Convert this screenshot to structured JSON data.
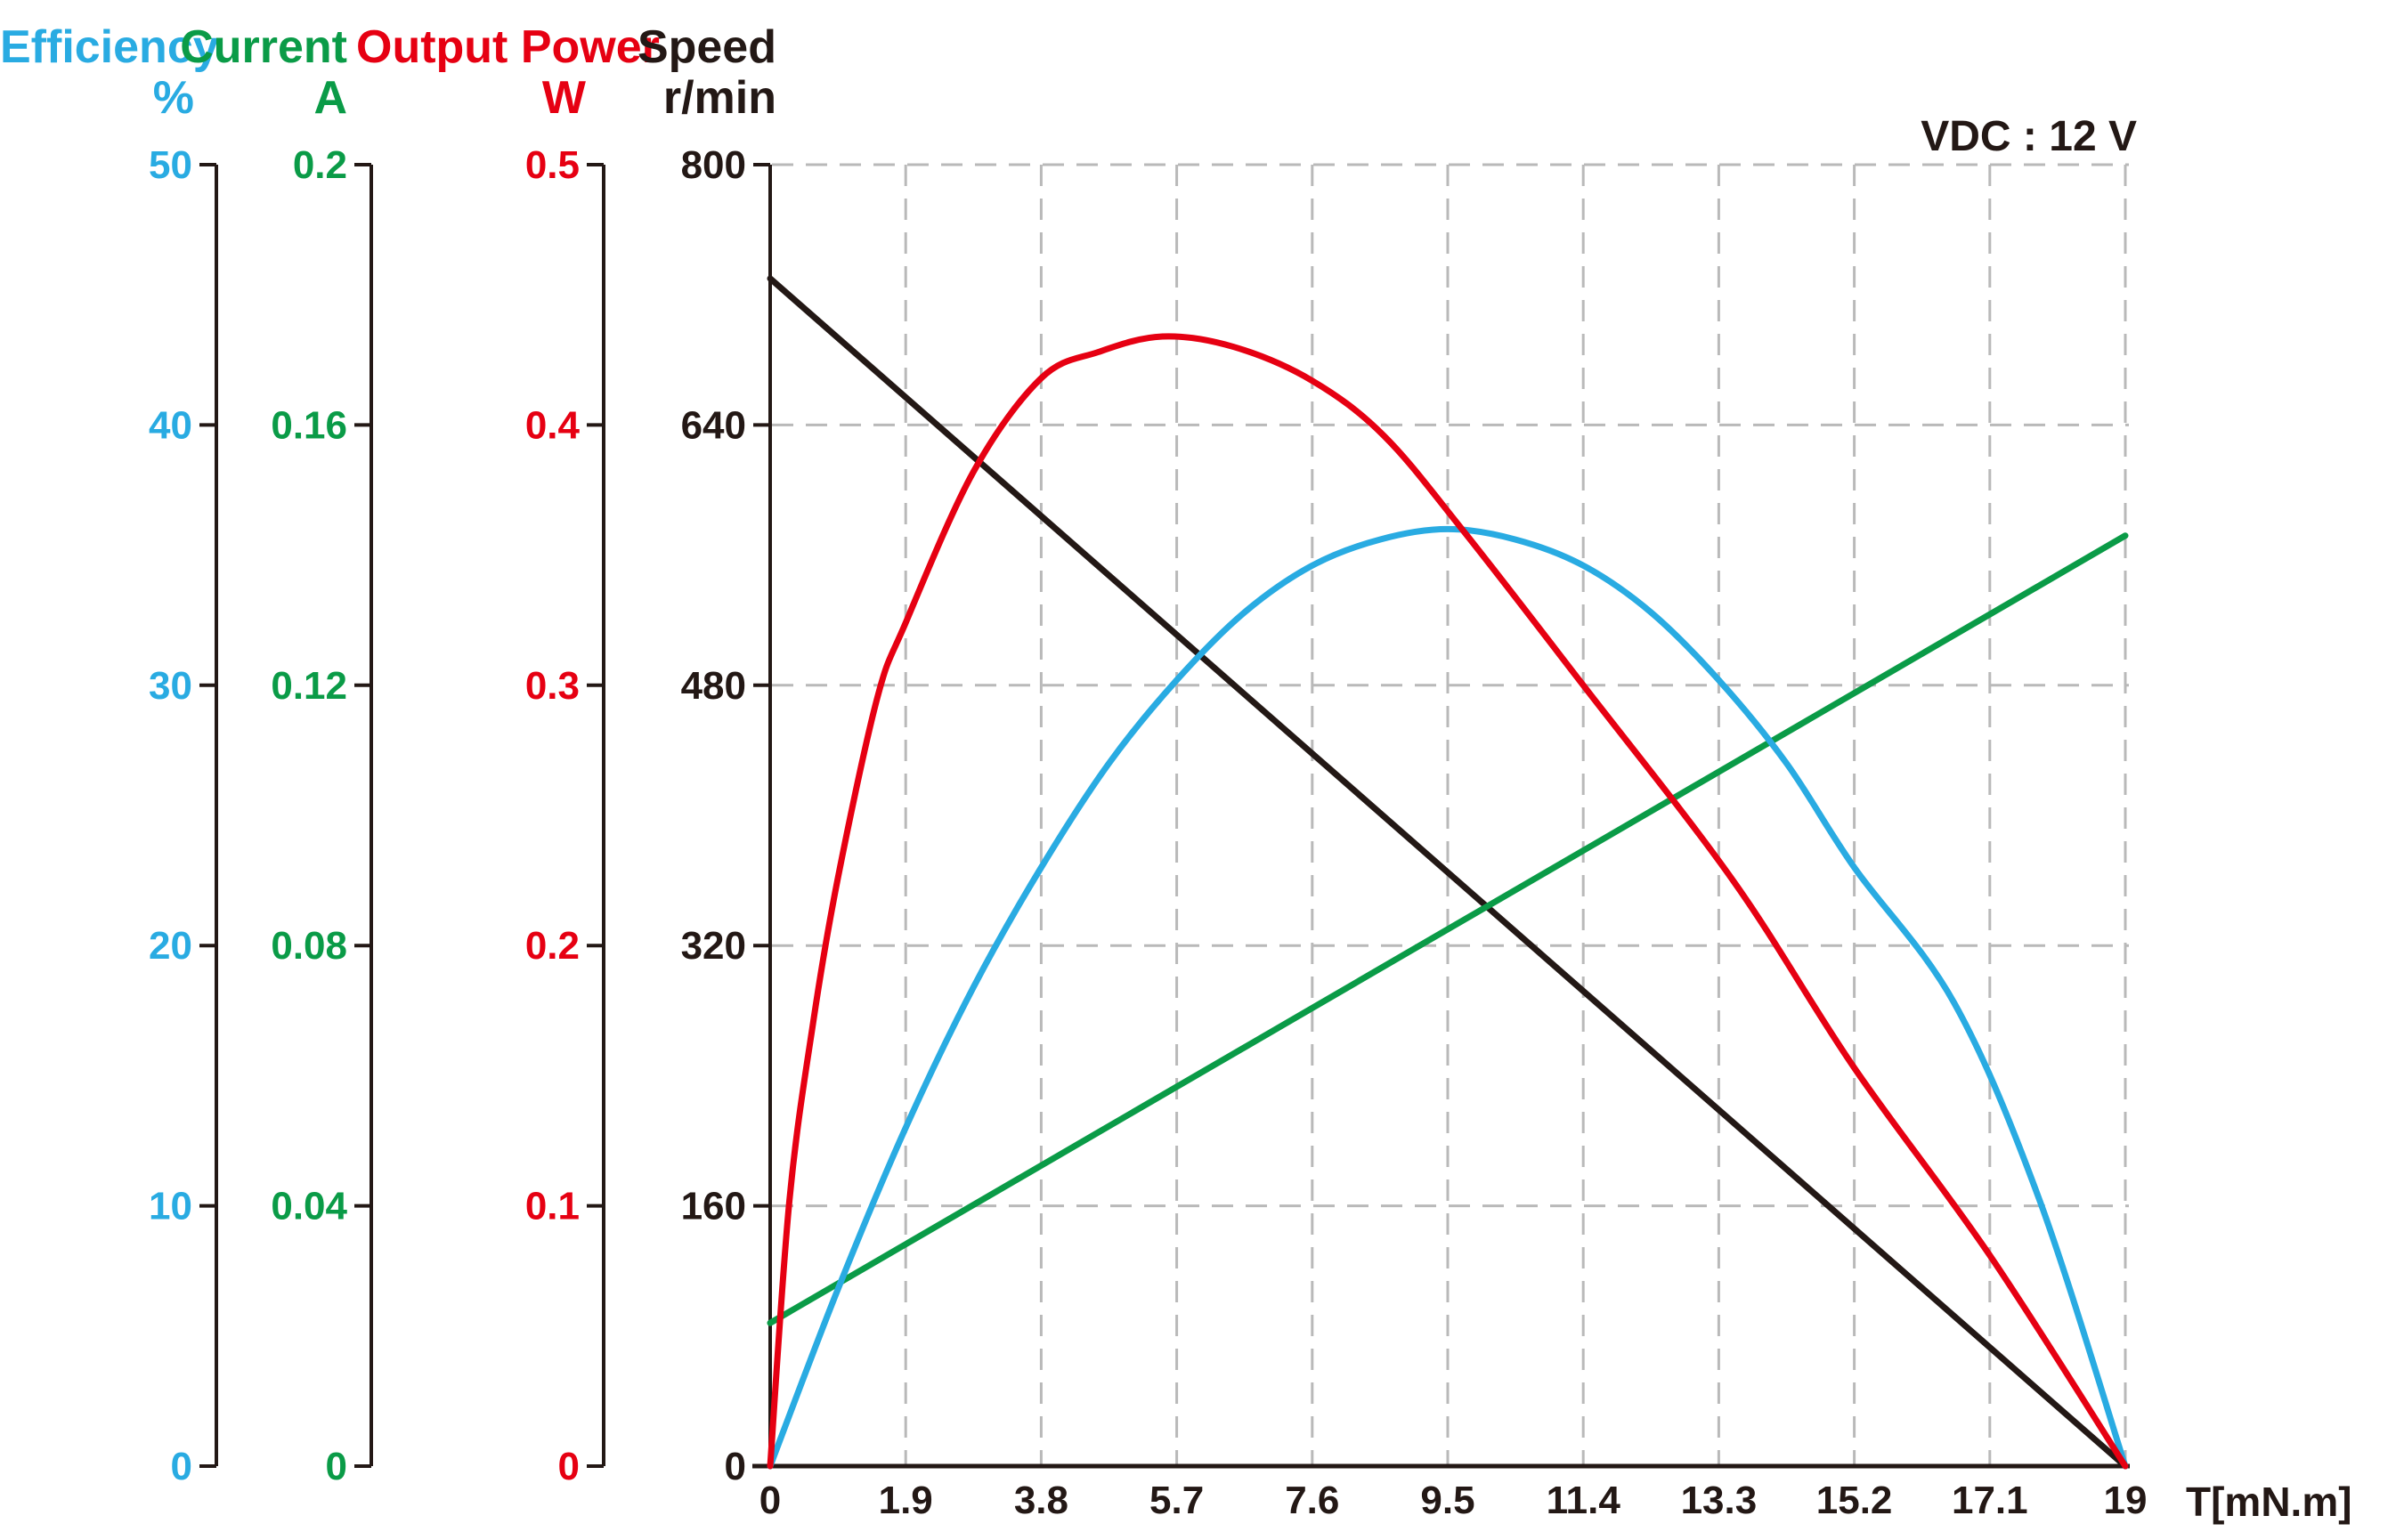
{
  "chart_data": {
    "type": "line",
    "title": "VDC : 12 V",
    "xlabel": "T[mN.m]",
    "x_max": 19,
    "x_ticks": [
      "0",
      "1.9",
      "3.8",
      "5.7",
      "7.6",
      "9.5",
      "11.4",
      "13.3",
      "15.2",
      "17.1",
      "19"
    ],
    "grid": "dashed",
    "grid_color": "#b9b9b9",
    "axes": [
      {
        "name": "Efficiency",
        "unit": "%",
        "color": "#29abe2",
        "max": 50,
        "ticks": [
          "50",
          "40",
          "30",
          "20",
          "10",
          "0"
        ]
      },
      {
        "name": "Current",
        "unit": "A",
        "color": "#0a9b47",
        "max": 0.2,
        "ticks": [
          "0.2",
          "0.16",
          "0.12",
          "0.08",
          "0.04",
          "0"
        ]
      },
      {
        "name": "Output Power",
        "unit": "W",
        "color": "#e60012",
        "max": 0.5,
        "ticks": [
          "0.5",
          "0.4",
          "0.3",
          "0.2",
          "0.1",
          "0"
        ]
      },
      {
        "name": "Speed",
        "unit": "r/min",
        "color": "#231815",
        "max": 800,
        "ticks": [
          "800",
          "640",
          "480",
          "320",
          "160",
          "0"
        ]
      }
    ],
    "series": [
      {
        "name": "Speed",
        "unit": "r/min",
        "color": "#231815",
        "axis": 3,
        "smooth": false,
        "points": [
          [
            0,
            730
          ],
          [
            19,
            0
          ]
        ]
      },
      {
        "name": "Current",
        "unit": "A",
        "color": "#0a9b47",
        "axis": 1,
        "smooth": false,
        "points": [
          [
            0,
            0.022
          ],
          [
            19,
            0.143
          ]
        ]
      },
      {
        "name": "Efficiency",
        "unit": "%",
        "color": "#29abe2",
        "axis": 0,
        "smooth": true,
        "points": [
          [
            0,
            0
          ],
          [
            0.95,
            6.8
          ],
          [
            1.9,
            13
          ],
          [
            2.85,
            18.4
          ],
          [
            3.8,
            23
          ],
          [
            4.75,
            27
          ],
          [
            5.7,
            30.2
          ],
          [
            6.65,
            32.8
          ],
          [
            7.6,
            34.6
          ],
          [
            8.55,
            35.6
          ],
          [
            9.5,
            36
          ],
          [
            10.45,
            35.6
          ],
          [
            11.4,
            34.6
          ],
          [
            12.35,
            32.8
          ],
          [
            13.3,
            30.2
          ],
          [
            14.25,
            27
          ],
          [
            15.2,
            23
          ],
          [
            16.6,
            17.8
          ],
          [
            17.8,
            10.2
          ],
          [
            19,
            0
          ]
        ]
      },
      {
        "name": "Output Power",
        "unit": "W",
        "color": "#e60012",
        "axis": 2,
        "smooth": true,
        "points": [
          [
            0,
            0
          ],
          [
            0.27,
            0.102
          ],
          [
            0.6,
            0.17
          ],
          [
            0.95,
            0.226
          ],
          [
            1.5,
            0.295
          ],
          [
            1.9,
            0.324
          ],
          [
            2.85,
            0.382
          ],
          [
            3.8,
            0.418
          ],
          [
            4.6,
            0.428
          ],
          [
            5.5,
            0.434
          ],
          [
            6.5,
            0.43
          ],
          [
            7.6,
            0.417
          ],
          [
            8.6,
            0.396
          ],
          [
            9.7,
            0.36
          ],
          [
            11.4,
            0.3
          ],
          [
            13.5,
            0.225
          ],
          [
            15.2,
            0.153
          ],
          [
            17.1,
            0.081
          ],
          [
            19,
            0
          ]
        ]
      }
    ]
  }
}
